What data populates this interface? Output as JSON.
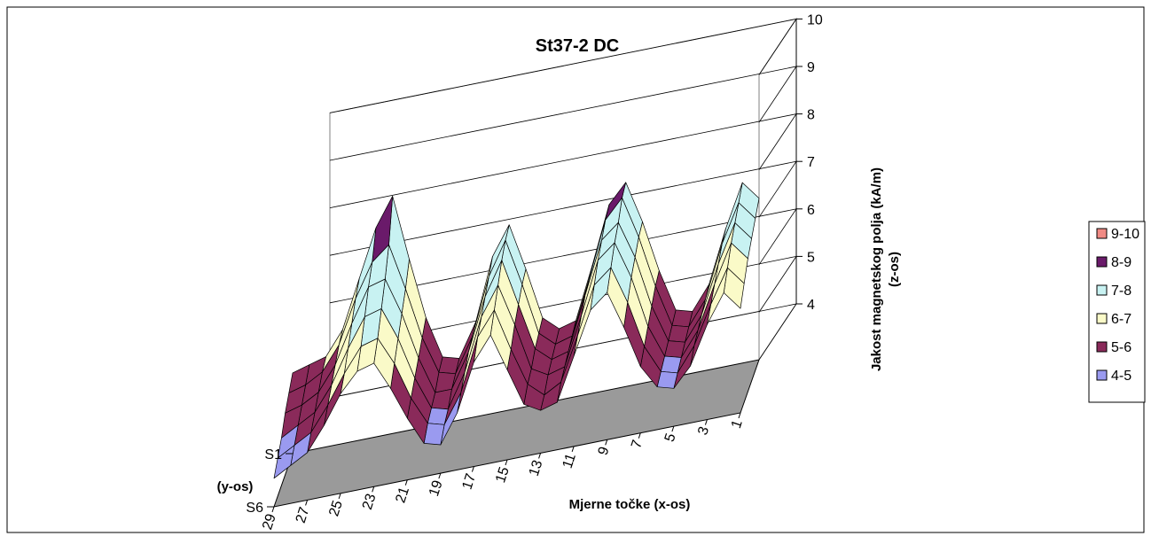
{
  "chart_data": {
    "type": "surface",
    "title": "St37-2 DC",
    "xlabel": "Mjerne točke (x-os)",
    "ylabel": "(y-os)",
    "zlabel_line1": "Jakost magnetskog polja (kA/m)",
    "zlabel_line2": "(z-os)",
    "x_ticks": [
      "29",
      "27",
      "25",
      "23",
      "21",
      "19",
      "17",
      "15",
      "13",
      "11",
      "9",
      "7",
      "5",
      "3",
      "1"
    ],
    "y_ticks": [
      "S1",
      "S6"
    ],
    "z_ticks": [
      "4",
      "5",
      "6",
      "7",
      "8",
      "9",
      "10"
    ],
    "zlim": [
      4,
      10
    ],
    "x_points": [
      29,
      28,
      27,
      26,
      25,
      24,
      23,
      22,
      21,
      20,
      19,
      18,
      17,
      16,
      15,
      14,
      13,
      12,
      11,
      10,
      9,
      8,
      7,
      6,
      5,
      4,
      3,
      2,
      1
    ],
    "y_series": [
      "S1",
      "S2",
      "S3",
      "S4",
      "S5",
      "S6"
    ],
    "z_values": [
      [
        5.7,
        5.8,
        5.9,
        6.4,
        7.4,
        8.4,
        9.0,
        7.6,
        6.3,
        5.4,
        5.3,
        6.0,
        7.3,
        7.9,
        6.9,
        5.8,
        5.5,
        5.6,
        6.7,
        7.9,
        8.3,
        7.4,
        6.3,
        5.4,
        5.3,
        5.8,
        6.9,
        7.8,
        7.4
      ],
      [
        5.5,
        5.6,
        5.8,
        6.3,
        7.2,
        7.9,
        8.2,
        7.2,
        6.1,
        5.3,
        5.2,
        5.9,
        7.1,
        7.8,
        6.8,
        5.7,
        5.4,
        5.5,
        6.6,
        7.8,
        8.2,
        7.3,
        6.2,
        5.3,
        5.2,
        5.7,
        6.8,
        7.6,
        7.2
      ],
      [
        5.3,
        5.4,
        5.6,
        6.1,
        6.9,
        7.6,
        7.7,
        6.9,
        5.9,
        5.1,
        5.1,
        5.8,
        6.9,
        7.6,
        6.6,
        5.6,
        5.3,
        5.4,
        6.5,
        7.6,
        7.9,
        7.1,
        6.0,
        5.2,
        5.1,
        5.6,
        6.6,
        7.4,
        7.0
      ],
      [
        5.0,
        5.2,
        5.4,
        5.9,
        6.6,
        7.2,
        7.3,
        6.6,
        5.7,
        5.0,
        4.9,
        5.6,
        6.7,
        7.3,
        6.4,
        5.4,
        5.2,
        5.3,
        6.3,
        7.4,
        7.7,
        6.9,
        5.8,
        5.1,
        5.0,
        5.5,
        6.4,
        7.2,
        6.8
      ],
      [
        4.8,
        5.0,
        5.2,
        5.7,
        6.3,
        6.8,
        6.9,
        6.3,
        5.5,
        4.9,
        4.8,
        5.4,
        6.5,
        7.0,
        6.1,
        5.3,
        5.0,
        5.2,
        6.1,
        7.1,
        7.4,
        6.6,
        5.6,
        5.0,
        4.9,
        5.4,
        6.2,
        6.9,
        6.5
      ],
      [
        4.6,
        4.8,
        5.0,
        5.5,
        6.1,
        6.5,
        6.6,
        6.0,
        5.3,
        4.7,
        4.6,
        5.2,
        6.2,
        6.7,
        5.9,
        5.1,
        4.9,
        5.0,
        5.9,
        6.8,
        7.1,
        6.3,
        5.4,
        4.9,
        4.8,
        5.2,
        6.0,
        6.6,
        6.2
      ]
    ],
    "legend": [
      {
        "label": "9-10",
        "color": "#F08A84"
      },
      {
        "label": "8-9",
        "color": "#6A1A6A"
      },
      {
        "label": "7-8",
        "color": "#C8F2F2"
      },
      {
        "label": "6-7",
        "color": "#FAFAC8"
      },
      {
        "label": "5-6",
        "color": "#8A2A5A"
      },
      {
        "label": "4-5",
        "color": "#9A9AF0"
      }
    ],
    "floor_color": "#9A9A9A",
    "grid": true,
    "legend_position": "right"
  }
}
